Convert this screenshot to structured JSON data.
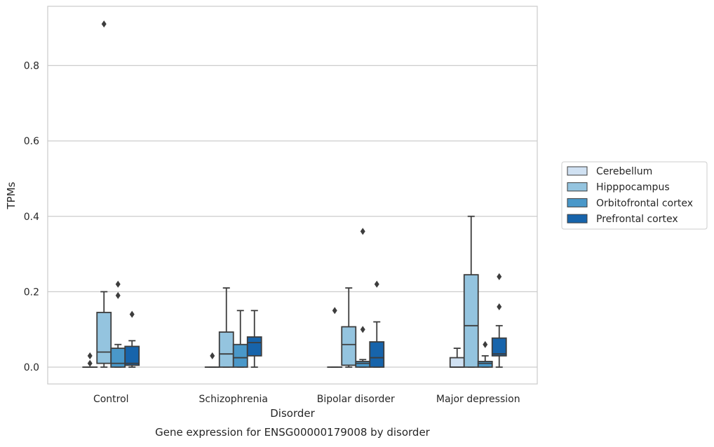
{
  "chart_data": {
    "type": "box",
    "title": "",
    "caption": "Gene expression for ENSG00000179008 by disorder",
    "xlabel": "Disorder",
    "ylabel": "TPMs",
    "ylim": [
      -0.044,
      0.955
    ],
    "yticks": [
      0.0,
      0.2,
      0.4,
      0.6,
      0.8
    ],
    "ytick_labels": [
      "0.0",
      "0.2",
      "0.4",
      "0.6",
      "0.8"
    ],
    "grid": "horizontal",
    "legend_position": "right",
    "categories": [
      "Control",
      "Schizophrenia",
      "Bipolar disorder",
      "Major depression"
    ],
    "series": [
      {
        "name": "Cerebellum",
        "color": "#d0e1f2",
        "boxes": [
          {
            "whisker_low": 0.0,
            "q1": 0.0,
            "median": 0.0,
            "q3": 0.0,
            "whisker_high": 0.0,
            "fliers": [
              0.03,
              0.01
            ]
          },
          {
            "whisker_low": 0.0,
            "q1": 0.0,
            "median": 0.0,
            "q3": 0.0,
            "whisker_high": 0.0,
            "fliers": [
              0.03
            ]
          },
          {
            "whisker_low": 0.0,
            "q1": 0.0,
            "median": 0.0,
            "q3": 0.0,
            "whisker_high": 0.0,
            "fliers": [
              0.15
            ]
          },
          {
            "whisker_low": 0.0,
            "q1": 0.0,
            "median": 0.0,
            "q3": 0.025,
            "whisker_high": 0.05,
            "fliers": []
          }
        ]
      },
      {
        "name": "Hipppocampus",
        "color": "#94c4df",
        "boxes": [
          {
            "whisker_low": 0.0,
            "q1": 0.01,
            "median": 0.04,
            "q3": 0.145,
            "whisker_high": 0.2,
            "fliers": [
              0.91
            ]
          },
          {
            "whisker_low": 0.0,
            "q1": 0.0,
            "median": 0.035,
            "q3": 0.093,
            "whisker_high": 0.21,
            "fliers": []
          },
          {
            "whisker_low": 0.0,
            "q1": 0.005,
            "median": 0.06,
            "q3": 0.107,
            "whisker_high": 0.21,
            "fliers": []
          },
          {
            "whisker_low": 0.0,
            "q1": 0.0,
            "median": 0.11,
            "q3": 0.245,
            "whisker_high": 0.4,
            "fliers": []
          }
        ]
      },
      {
        "name": "Orbitofrontal cortex",
        "color": "#4a98c9",
        "boxes": [
          {
            "whisker_low": 0.0,
            "q1": 0.0,
            "median": 0.01,
            "q3": 0.05,
            "whisker_high": 0.06,
            "fliers": [
              0.22,
              0.19
            ]
          },
          {
            "whisker_low": 0.0,
            "q1": 0.0,
            "median": 0.025,
            "q3": 0.06,
            "whisker_high": 0.15,
            "fliers": []
          },
          {
            "whisker_low": 0.0,
            "q1": 0.0,
            "median": 0.01,
            "q3": 0.015,
            "whisker_high": 0.02,
            "fliers": [
              0.36,
              0.1
            ]
          },
          {
            "whisker_low": 0.0,
            "q1": 0.0,
            "median": 0.01,
            "q3": 0.015,
            "whisker_high": 0.03,
            "fliers": [
              0.06
            ]
          }
        ]
      },
      {
        "name": "Prefrontal cortex",
        "color": "#1764ab",
        "boxes": [
          {
            "whisker_low": 0.0,
            "q1": 0.005,
            "median": 0.01,
            "q3": 0.055,
            "whisker_high": 0.07,
            "fliers": [
              0.14
            ]
          },
          {
            "whisker_low": 0.0,
            "q1": 0.03,
            "median": 0.065,
            "q3": 0.08,
            "whisker_high": 0.15,
            "fliers": []
          },
          {
            "whisker_low": 0.0,
            "q1": 0.0,
            "median": 0.025,
            "q3": 0.067,
            "whisker_high": 0.12,
            "fliers": [
              0.22
            ]
          },
          {
            "whisker_low": 0.0,
            "q1": 0.03,
            "median": 0.035,
            "q3": 0.077,
            "whisker_high": 0.11,
            "fliers": [
              0.24,
              0.16
            ]
          }
        ]
      }
    ]
  }
}
